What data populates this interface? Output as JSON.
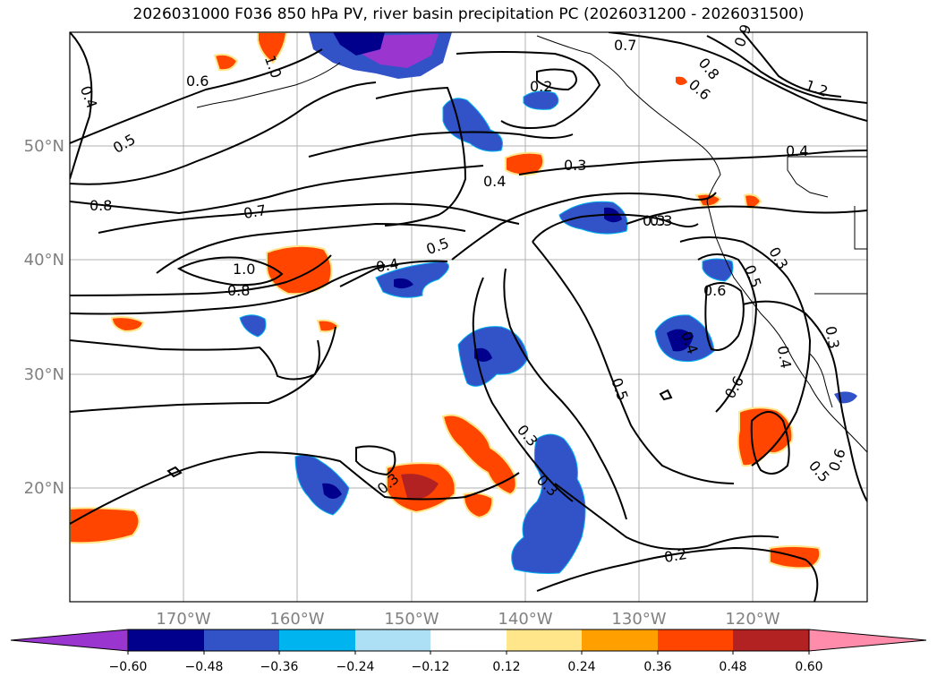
{
  "title": "2026031000 F036 850 hPa PV, river basin precipitation PC (2026031200 - 2026031500)",
  "latitude_labels": [
    "50°N",
    "40°N",
    "30°N",
    "20°N"
  ],
  "longitude_labels": [
    "170°W",
    "160°W",
    "150°W",
    "140°W",
    "130°W",
    "120°W"
  ],
  "colorbar": {
    "tick_labels": [
      "−0.60",
      "−0.48",
      "−0.36",
      "−0.24",
      "−0.12",
      "0.12",
      "0.24",
      "0.36",
      "0.48",
      "0.60"
    ],
    "colors": [
      "#9a35d0",
      "#00008c",
      "#3252c8",
      "#00b4f0",
      "#ade0f5",
      "#ffffff",
      "#ffe68a",
      "#ffa000",
      "#ff4500",
      "#b22222",
      "#ff8caa"
    ]
  },
  "contour_labels": [
    "0.4",
    "0.6",
    "0.5",
    "0.8",
    "0.7",
    "1.0",
    "0.8",
    "0.5",
    "0.4",
    "0.3",
    "0.3",
    "0.7",
    "0.2",
    "0.4",
    "0.3",
    "0.8",
    "0.6",
    "1.2",
    "0.4",
    "0.6",
    "0.5",
    "0.3",
    "0.4",
    "0.5",
    "0.6",
    "0.4",
    "0.3",
    "0.3",
    "0.6",
    "0.5",
    "0.2",
    "0.3",
    "1.0",
    "0.9",
    "0.3"
  ]
}
